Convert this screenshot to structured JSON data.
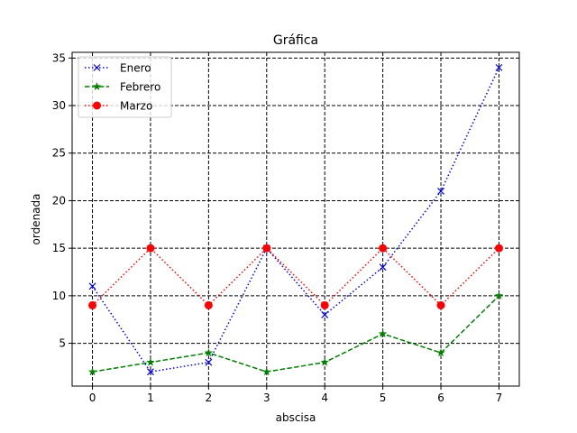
{
  "chart_data": {
    "type": "line",
    "title": "Gráfica",
    "xlabel": "abscisa",
    "ylabel": "ordenada",
    "x": [
      0,
      1,
      2,
      3,
      4,
      5,
      6,
      7
    ],
    "xlim": [
      -0.35,
      7.35
    ],
    "ylim": [
      0.5,
      35.6
    ],
    "xticks": [
      0,
      1,
      2,
      3,
      4,
      5,
      6,
      7
    ],
    "yticks": [
      5,
      10,
      15,
      20,
      25,
      30,
      35
    ],
    "grid": true,
    "grid_style": "dashed",
    "legend_position": "upper-left",
    "series": [
      {
        "name": "Enero",
        "values": [
          11,
          2,
          3,
          15,
          8,
          13,
          21,
          34
        ],
        "color": "#0000ff",
        "linestyle": "dotted",
        "marker": "x"
      },
      {
        "name": "Febrero",
        "values": [
          2,
          3,
          4,
          2,
          3,
          6,
          4,
          10
        ],
        "color": "#008000",
        "linestyle": "dashed",
        "marker": "star"
      },
      {
        "name": "Marzo",
        "values": [
          9,
          15,
          9,
          15,
          9,
          15,
          9,
          15
        ],
        "color": "#ff0000",
        "linestyle": "dotted",
        "marker": "circle"
      }
    ]
  }
}
